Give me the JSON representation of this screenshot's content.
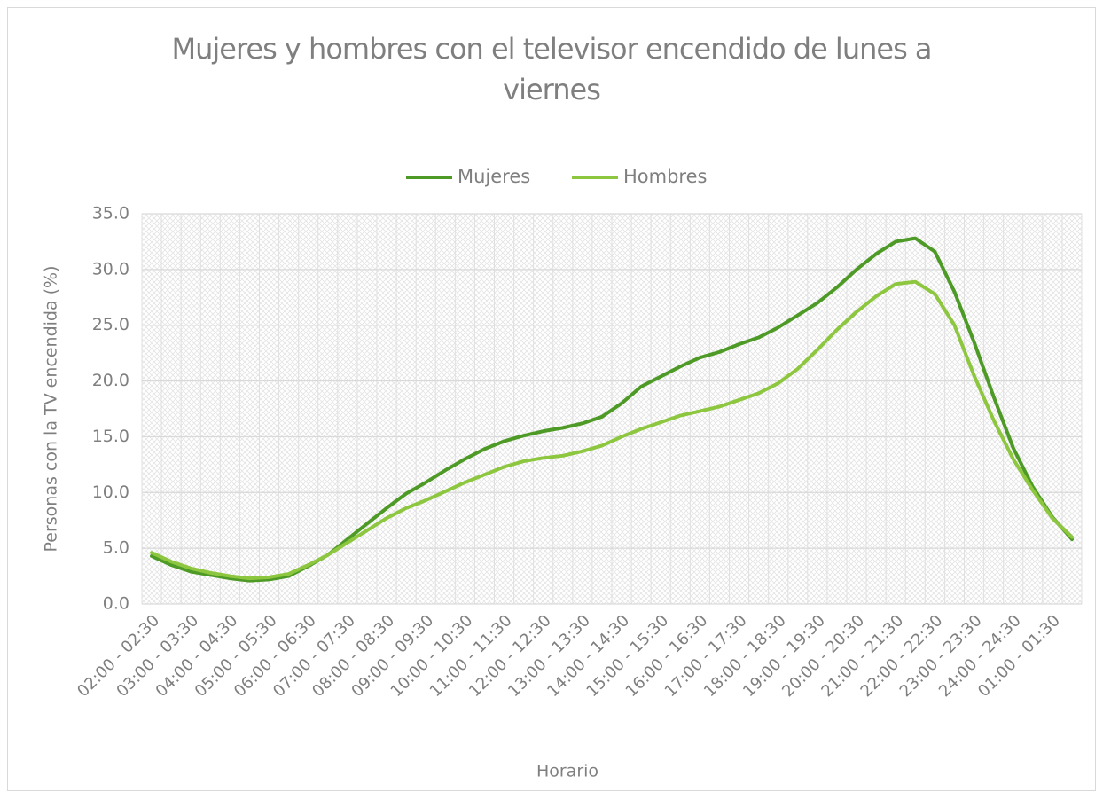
{
  "chart_data": {
    "type": "line",
    "title": "Mujeres y hombres con el televisor encendido de lunes a viernes",
    "x_label": "Horario",
    "y_label": "Personas con la TV encendida (%)",
    "categories": [
      "02:00 - 02:30",
      null,
      "03:00 - 03:30",
      null,
      "04:00 - 04:30",
      null,
      "05:00 - 05:30",
      null,
      "06:00 - 06:30",
      null,
      "07:00 - 07:30",
      null,
      "08:00 - 08:30",
      null,
      "09:00 - 09:30",
      null,
      "10:00 - 10:30",
      null,
      "11:00 - 11:30",
      null,
      "12:00 - 12:30",
      null,
      "13:00 - 13:30",
      null,
      "14:00 - 14:30",
      null,
      "15:00 - 15:30",
      null,
      "16:00 - 16:30",
      null,
      "17:00 - 17:30",
      null,
      "18:00 - 18:30",
      null,
      "19:00 - 19:30",
      null,
      "20:00 - 20:30",
      null,
      "21:00 - 21:30",
      null,
      "22:00 - 22:30",
      null,
      "23:00 - 23:30",
      null,
      "24:00 - 24:30",
      null,
      "01:00 - 01:30",
      null
    ],
    "series": [
      {
        "name": "Mujeres",
        "color": "#4e9a26",
        "values": [
          4.3,
          3.5,
          2.9,
          2.6,
          2.3,
          2.1,
          2.2,
          2.5,
          3.4,
          4.4,
          5.8,
          7.2,
          8.6,
          9.9,
          10.9,
          12.0,
          13.0,
          13.9,
          14.6,
          15.1,
          15.5,
          15.8,
          16.2,
          16.8,
          18.0,
          19.5,
          20.4,
          21.3,
          22.1,
          22.6,
          23.3,
          23.9,
          24.8,
          25.9,
          27.0,
          28.4,
          30.0,
          31.4,
          32.5,
          32.8,
          31.6,
          28.0,
          23.5,
          18.6,
          14.0,
          10.5,
          7.8,
          5.8
        ]
      },
      {
        "name": "Hombres",
        "color": "#8dc63f",
        "values": [
          4.6,
          3.8,
          3.2,
          2.8,
          2.5,
          2.3,
          2.4,
          2.7,
          3.5,
          4.4,
          5.5,
          6.6,
          7.7,
          8.6,
          9.3,
          10.1,
          10.9,
          11.6,
          12.3,
          12.8,
          13.1,
          13.3,
          13.7,
          14.2,
          15.0,
          15.7,
          16.3,
          16.9,
          17.3,
          17.7,
          18.3,
          18.9,
          19.8,
          21.1,
          22.8,
          24.6,
          26.2,
          27.6,
          28.7,
          28.9,
          27.8,
          25.0,
          20.5,
          16.5,
          13.0,
          10.2,
          7.7,
          6.0
        ]
      }
    ],
    "ylim": [
      0,
      35
    ],
    "yticks": [
      {
        "value": 0,
        "label": "0.0"
      },
      {
        "value": 5,
        "label": "5.0"
      },
      {
        "value": 10,
        "label": "10.0"
      },
      {
        "value": 15,
        "label": "15.0"
      },
      {
        "value": 20,
        "label": "20.0"
      },
      {
        "value": 25,
        "label": "25.0"
      },
      {
        "value": 30,
        "label": "30.0"
      },
      {
        "value": 35,
        "label": "35.0"
      }
    ],
    "grid": true,
    "legend": "top"
  }
}
